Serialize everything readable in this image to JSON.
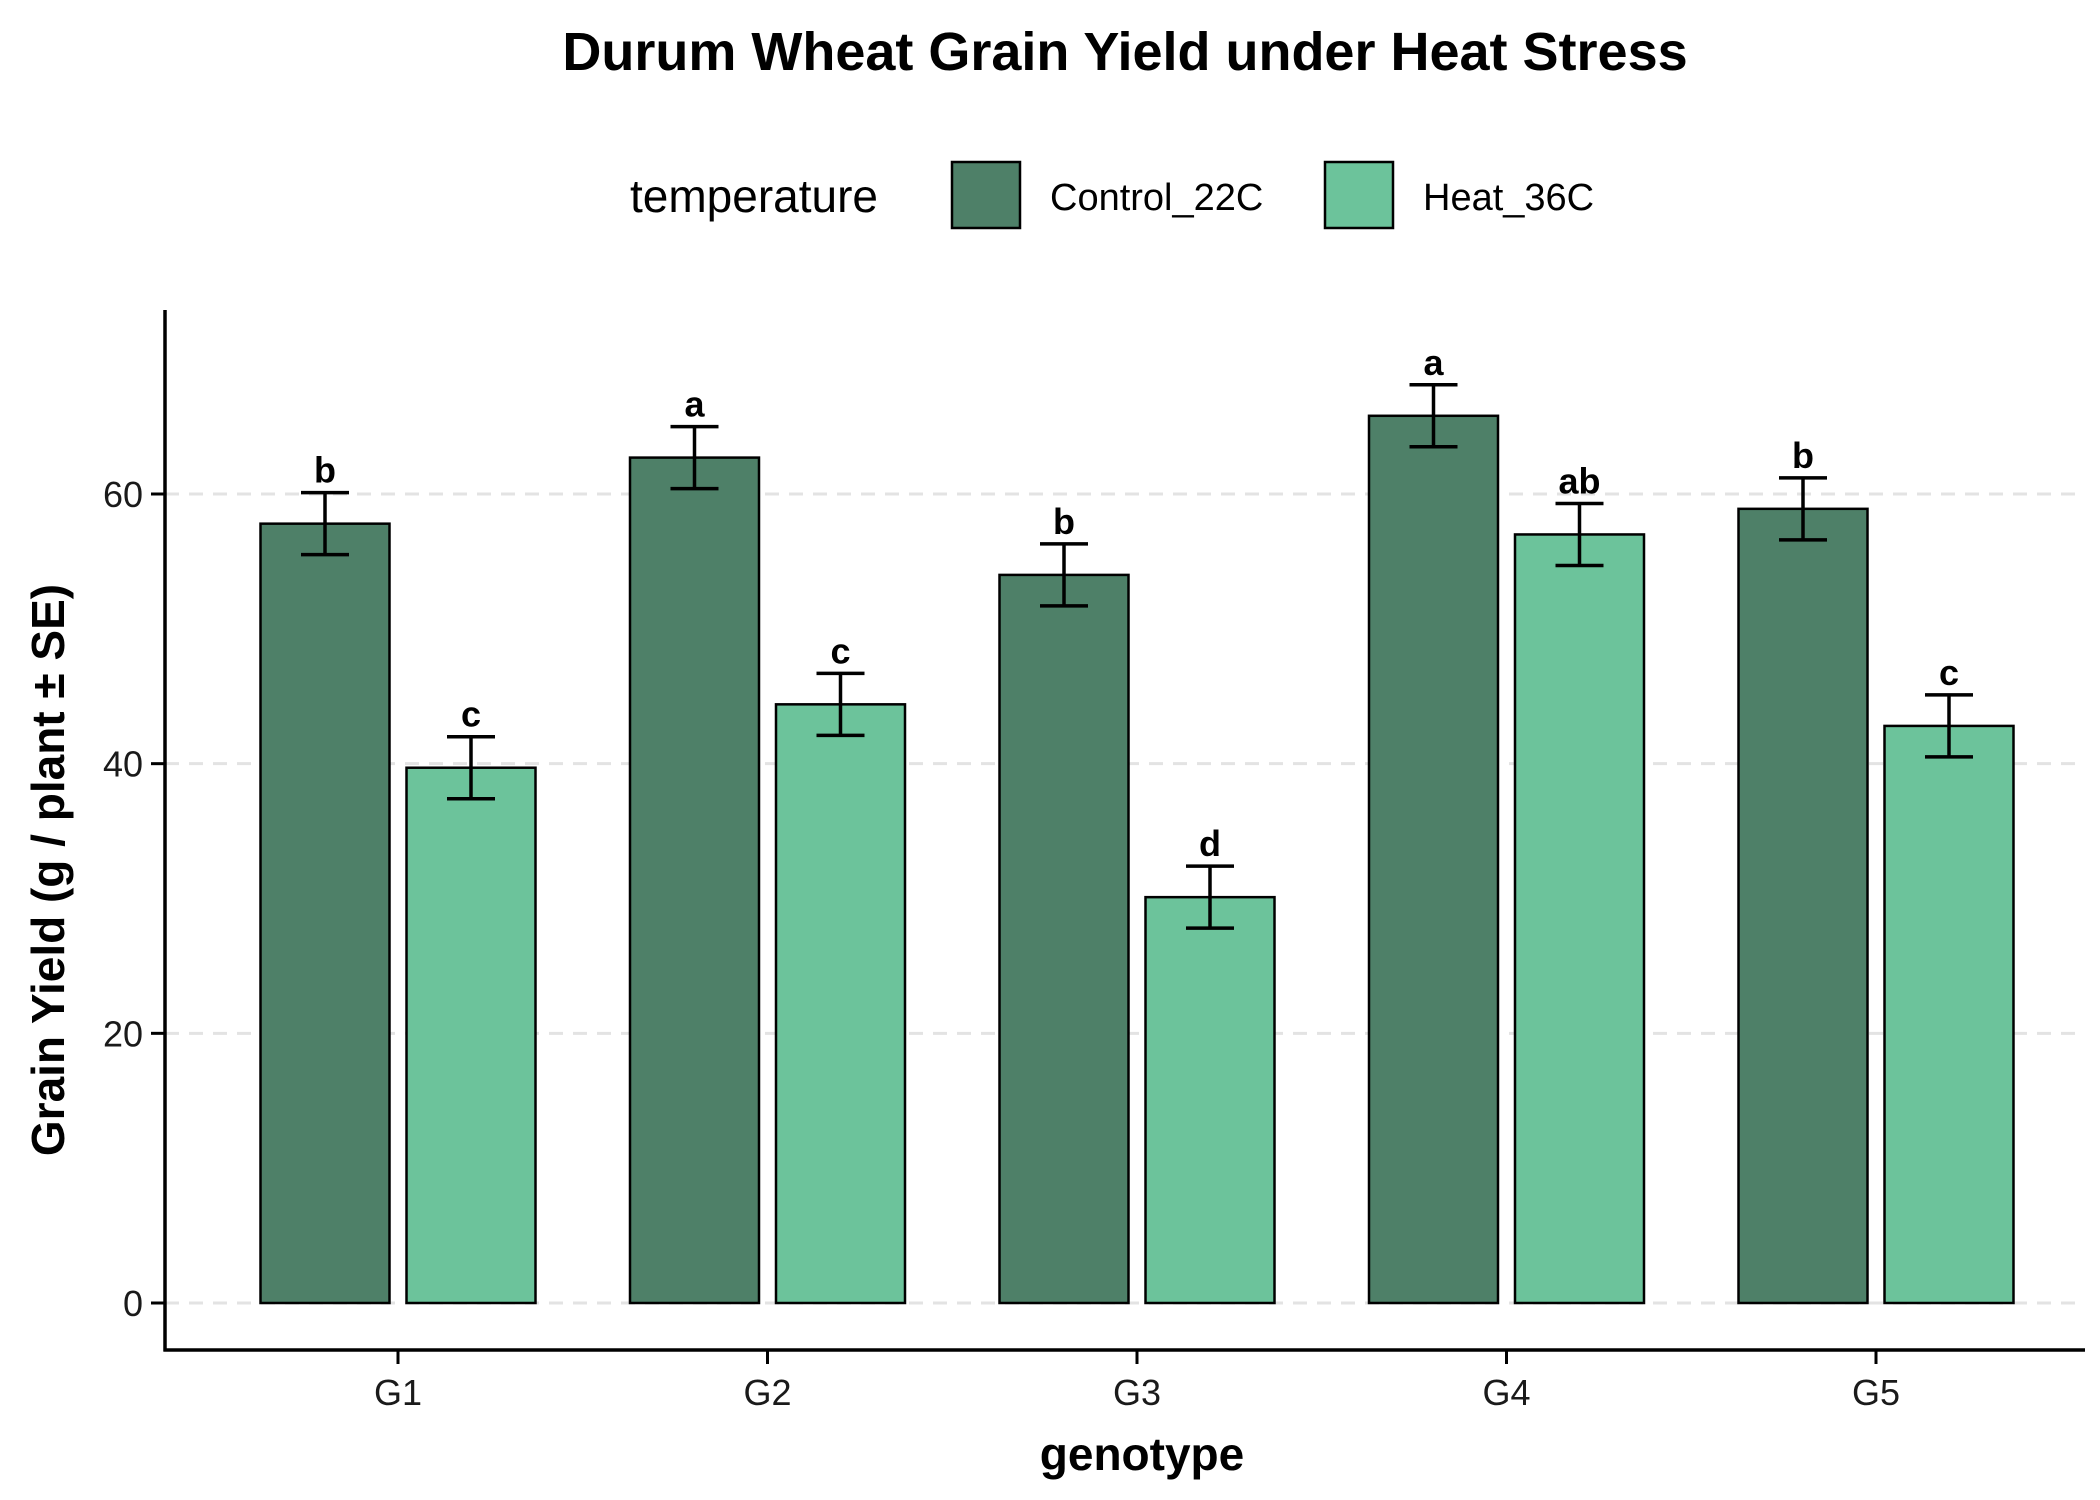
{
  "chart_data": {
    "type": "bar",
    "title": "Durum Wheat Grain Yield under Heat Stress",
    "xlabel": "genotype",
    "ylabel": "Grain Yield (g / plant ± SE)",
    "ylim": [
      0,
      73
    ],
    "yticks": [
      0,
      20,
      40,
      60
    ],
    "grid": "horizontal dashed",
    "legend": {
      "title": "temperature",
      "position": "top"
    },
    "categories": [
      "G1",
      "G2",
      "G3",
      "G4",
      "G5"
    ],
    "series": [
      {
        "name": "Control_22C",
        "color": "#4e8068",
        "values": [
          57.8,
          62.7,
          54.0,
          65.8,
          58.9
        ],
        "se": [
          2.3,
          2.3,
          2.3,
          2.3,
          2.3
        ],
        "sig_labels": [
          "b",
          "a",
          "b",
          "a",
          "b"
        ]
      },
      {
        "name": "Heat_36C",
        "color": "#6cc39b",
        "values": [
          39.7,
          44.4,
          30.1,
          57.0,
          42.8
        ],
        "se": [
          2.3,
          2.3,
          2.3,
          2.3,
          2.3
        ],
        "sig_labels": [
          "c",
          "c",
          "d",
          "ab",
          "c"
        ]
      }
    ]
  }
}
